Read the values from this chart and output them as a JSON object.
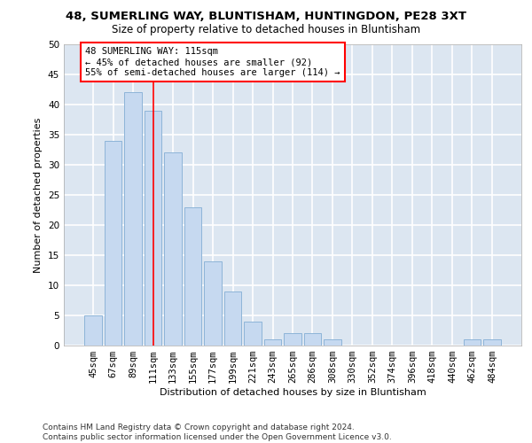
{
  "title1": "48, SUMERLING WAY, BLUNTISHAM, HUNTINGDON, PE28 3XT",
  "title2": "Size of property relative to detached houses in Bluntisham",
  "xlabel": "Distribution of detached houses by size in Bluntisham",
  "ylabel": "Number of detached properties",
  "categories": [
    "45sqm",
    "67sqm",
    "89sqm",
    "111sqm",
    "133sqm",
    "155sqm",
    "177sqm",
    "199sqm",
    "221sqm",
    "243sqm",
    "265sqm",
    "286sqm",
    "308sqm",
    "330sqm",
    "352sqm",
    "374sqm",
    "396sqm",
    "418sqm",
    "440sqm",
    "462sqm",
    "484sqm"
  ],
  "values": [
    5,
    34,
    42,
    39,
    32,
    23,
    14,
    9,
    4,
    1,
    2,
    2,
    1,
    0,
    0,
    0,
    0,
    0,
    0,
    1,
    1
  ],
  "bar_color": "#c6d9f0",
  "bar_edge_color": "#8db4d8",
  "vline_x_index": 3,
  "vline_color": "red",
  "annotation_text": "48 SUMERLING WAY: 115sqm\n← 45% of detached houses are smaller (92)\n55% of semi-detached houses are larger (114) →",
  "annotation_box_color": "white",
  "annotation_box_edge_color": "red",
  "ylim": [
    0,
    50
  ],
  "yticks": [
    0,
    5,
    10,
    15,
    20,
    25,
    30,
    35,
    40,
    45,
    50
  ],
  "background_color": "#dce6f1",
  "grid_color": "white",
  "footnote": "Contains HM Land Registry data © Crown copyright and database right 2024.\nContains public sector information licensed under the Open Government Licence v3.0.",
  "title1_fontsize": 9.5,
  "title2_fontsize": 8.5,
  "xlabel_fontsize": 8,
  "ylabel_fontsize": 8,
  "tick_fontsize": 7.5,
  "annotation_fontsize": 7.5,
  "footnote_fontsize": 6.5
}
